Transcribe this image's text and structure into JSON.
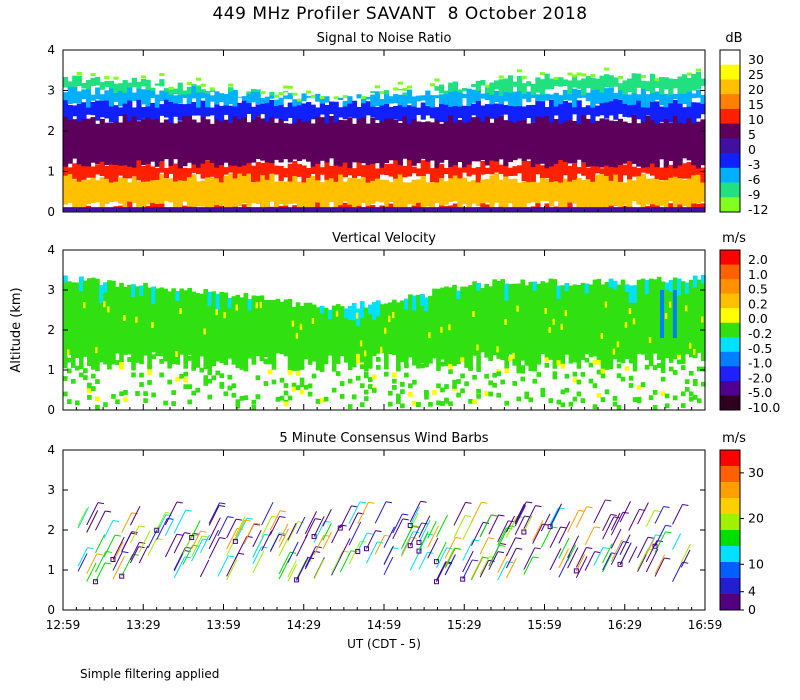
{
  "title": "449 MHz Profiler SAVANT  8 October 2018",
  "footnote": "Simple filtering applied",
  "chart_data": [
    {
      "type": "heatmap",
      "title": "Signal to Noise Ratio",
      "ylabel": "Altitude (km)",
      "xlabel": "UT  (CDT - 5)",
      "ylim": [
        0,
        4
      ],
      "yticks": [
        "0",
        "1",
        "2",
        "3",
        "4"
      ],
      "xticks": [
        "12:59",
        "13:29",
        "13:59",
        "14:29",
        "14:59",
        "15:29",
        "15:59",
        "16:29",
        "16:59"
      ],
      "xrange_hours": [
        12.983,
        16.983
      ],
      "colorbar": {
        "unit": "dB",
        "labels": [
          "30",
          "25",
          "20",
          "15",
          "10",
          "5",
          "0",
          "-3",
          "-6",
          "-9",
          "-12"
        ],
        "colors": [
          "#ffffff",
          "#ffff00",
          "#ffc000",
          "#ff8000",
          "#ff2000",
          "#5c005c",
          "#4010a0",
          "#1020ff",
          "#00b0ff",
          "#20e080",
          "#80ff20"
        ]
      },
      "top_of_data_km": [
        3.3,
        3.25,
        3.2,
        3.1,
        3.0,
        2.9,
        2.85,
        2.85,
        2.9,
        3.0,
        3.15,
        3.25,
        3.3,
        3.3,
        3.35
      ],
      "top_x_hours": [
        12.983,
        13.25,
        13.5,
        13.75,
        14.0,
        14.25,
        14.5,
        14.75,
        15.0,
        15.25,
        15.5,
        15.75,
        16.0,
        16.5,
        16.983
      ],
      "layers_db_by_altitude_km": [
        {
          "km": [
            0.0,
            0.15
          ],
          "db": "10"
        },
        {
          "km": [
            0.15,
            0.85
          ],
          "db": "20"
        },
        {
          "km": [
            0.85,
            1.2
          ],
          "db": "10"
        },
        {
          "km": [
            1.2,
            2.3
          ],
          "db": "5"
        },
        {
          "km": [
            2.3,
            2.7
          ],
          "db": "-3"
        },
        {
          "km": [
            2.7,
            3.0
          ],
          "db": "-6"
        },
        {
          "km": [
            3.0,
            3.3
          ],
          "db": "-9"
        }
      ]
    },
    {
      "type": "heatmap",
      "title": "Vertical Velocity",
      "ylim": [
        0,
        4
      ],
      "yticks": [
        "0",
        "1",
        "2",
        "3",
        "4"
      ],
      "colorbar": {
        "unit": "m/s",
        "labels": [
          "2.0",
          "1.0",
          "0.5",
          "0.2",
          "0.0",
          "-0.2",
          "-0.5",
          "-1.0",
          "-2.0",
          "-5.0",
          "-10.0"
        ],
        "colors": [
          "#ff0000",
          "#ff6000",
          "#ff9000",
          "#ffc000",
          "#ffff00",
          "#30e010",
          "#00e0ff",
          "#0080ff",
          "#2020ff",
          "#500090",
          "#300020"
        ]
      },
      "dominant_value_range": "0.0 to -0.2",
      "top_of_data_km": [
        3.3,
        3.2,
        3.1,
        3.0,
        2.9,
        2.8,
        2.6,
        2.6,
        2.7,
        2.9,
        3.1,
        3.2,
        3.2,
        3.2,
        3.3
      ],
      "bottom_of_continuous_data_km": 1.2
    },
    {
      "type": "scatter",
      "title": "5 Minute Consensus Wind Barbs",
      "ylim": [
        0,
        4
      ],
      "yticks": [
        "0",
        "1",
        "2",
        "3",
        "4"
      ],
      "colorbar": {
        "unit": "m/s",
        "labels": [
          "30",
          "20",
          "10",
          "4",
          "0"
        ],
        "label_values": [
          30,
          20,
          10,
          4,
          0
        ],
        "range": [
          0,
          35
        ],
        "colors": [
          "#ff0000",
          "#ff6000",
          "#ffa000",
          "#ffd000",
          "#a0f000",
          "#00e000",
          "#00e0ff",
          "#0060ff",
          "#2020d0",
          "#500080"
        ]
      },
      "barb_altitude_range_km": [
        0.5,
        2.3
      ],
      "dominant_speed_m_s": "0-4"
    }
  ]
}
